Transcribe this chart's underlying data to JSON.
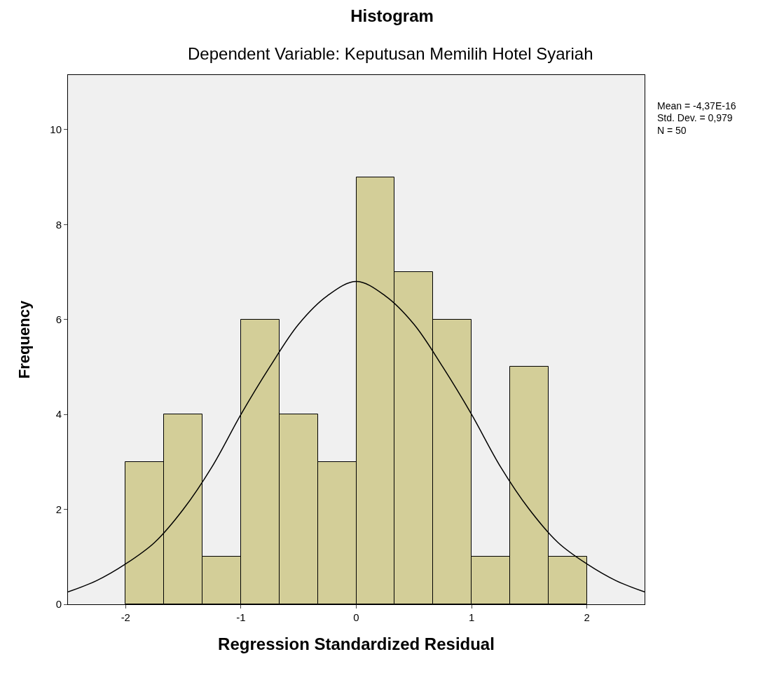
{
  "chart_data": {
    "type": "histogram",
    "title": "Histogram",
    "subtitle": "Dependent Variable: Keputusan Memilih Hotel Syariah",
    "xlabel": "Regression Standardized Residual",
    "ylabel": "Frequency",
    "bins": [
      -2,
      -1.6667,
      -1.3333,
      -1,
      -0.6667,
      -0.3333,
      0,
      0.3333,
      0.6667,
      1,
      1.3333,
      1.6667,
      2
    ],
    "values": [
      3,
      4,
      1,
      6,
      4,
      3,
      9,
      7,
      6,
      1,
      5,
      1
    ],
    "color": "#d3ce98",
    "series": [
      {
        "type": "line",
        "color": "#000000",
        "x": [
          -2.5,
          -2.25,
          -2,
          -1.75,
          -1.5,
          -1.25,
          -1,
          -0.75,
          -0.5,
          -0.25,
          0,
          0.25,
          0.5,
          0.75,
          1,
          1.25,
          1.5,
          1.75,
          2,
          2.25,
          2.5
        ],
        "values": [
          0.26,
          0.5,
          0.85,
          1.3,
          2.0,
          2.9,
          4.0,
          5.0,
          5.9,
          6.5,
          6.8,
          6.5,
          5.9,
          5.0,
          4.0,
          2.9,
          2.0,
          1.3,
          0.85,
          0.5,
          0.26
        ]
      }
    ],
    "annotations": [
      "Mean = -4,37E-16",
      "Std. Dev. = 0,979",
      "N = 50"
    ],
    "xlim": [
      -2.5,
      2.5
    ],
    "xticks": [
      -2,
      -1,
      0,
      1,
      2
    ],
    "ylim": [
      0,
      11.15
    ],
    "yticks": [
      0,
      2,
      4,
      6,
      8,
      10
    ],
    "grid": false
  }
}
